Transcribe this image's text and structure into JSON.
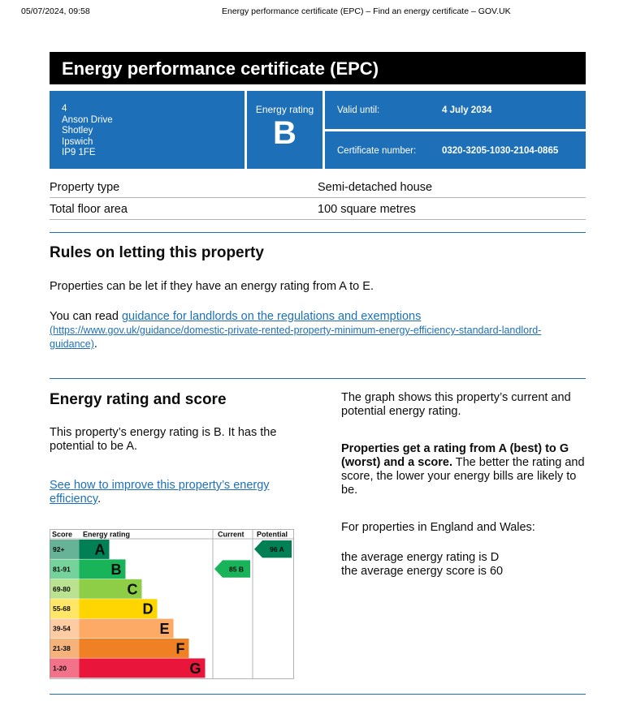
{
  "print_header": {
    "date": "05/07/2024, 09:58",
    "title": "Energy performance certificate (EPC) – Find an energy certificate – GOV.UK"
  },
  "hero_title": "Energy performance certificate (EPC)",
  "address": [
    "4",
    "Anson Drive",
    "Shotley",
    "Ipswich",
    "IP9 1FE"
  ],
  "energy_rating": {
    "label": "Energy rating",
    "value": "B"
  },
  "valid_until": {
    "label": "Valid until:",
    "value": "4 July 2034"
  },
  "certificate_number": {
    "label": "Certificate number:",
    "value": "0320-3205-1030-2104-0865"
  },
  "property": [
    {
      "key": "Property type",
      "value": "Semi-detached house"
    },
    {
      "key": "Total floor area",
      "value": "100 square metres"
    }
  ],
  "letting": {
    "heading": "Rules on letting this property",
    "p1": "Properties can be let if they have an energy rating from A to E.",
    "p2_prefix": "You can read ",
    "p2_link": "guidance for landlords on the regulations and exemptions",
    "p2_url": "(https://www.gov.uk/guidance/domestic-private-rented-property-minimum-energy-efficiency-standard-landlord-guidance)",
    "p2_suffix": "."
  },
  "score": {
    "heading": "Energy rating and score",
    "p1": "This property’s energy rating is B. It has the potential to be A.",
    "improve_link": "See how to improve this property’s energy efficiency",
    "improve_suffix": ".",
    "right_p1": "The graph shows this property’s current and potential energy rating.",
    "right_p2_bold": "Properties get a rating from A (best) to G (worst) and a score.",
    "right_p2_rest": " The better the rating and score, the lower your energy bills are likely to be.",
    "right_p3": "For properties in England and Wales:",
    "right_p4_line1": "the average energy rating is D",
    "right_p4_line2": "the average energy score is 60"
  },
  "chart_data": {
    "type": "bar",
    "headers": {
      "score": "Score",
      "rating": "Energy rating",
      "current": "Current",
      "potential": "Potential"
    },
    "bands": [
      {
        "range": "92+",
        "letter": "A",
        "color": "#008054",
        "width": 37
      },
      {
        "range": "81-91",
        "letter": "B",
        "color": "#19b459",
        "width": 57
      },
      {
        "range": "69-80",
        "letter": "C",
        "color": "#8dce46",
        "width": 77
      },
      {
        "range": "55-68",
        "letter": "D",
        "color": "#ffd500",
        "width": 96
      },
      {
        "range": "39-54",
        "letter": "E",
        "color": "#fcaa65",
        "width": 116
      },
      {
        "range": "21-38",
        "letter": "F",
        "color": "#ef8023",
        "width": 135
      },
      {
        "range": "1-20",
        "letter": "G",
        "color": "#e9153b",
        "width": 155
      }
    ],
    "current": {
      "score": 85,
      "letter": "B",
      "label": "85  B",
      "color": "#19b459"
    },
    "potential": {
      "score": 96,
      "letter": "A",
      "label": "96  A",
      "color": "#008054"
    }
  }
}
